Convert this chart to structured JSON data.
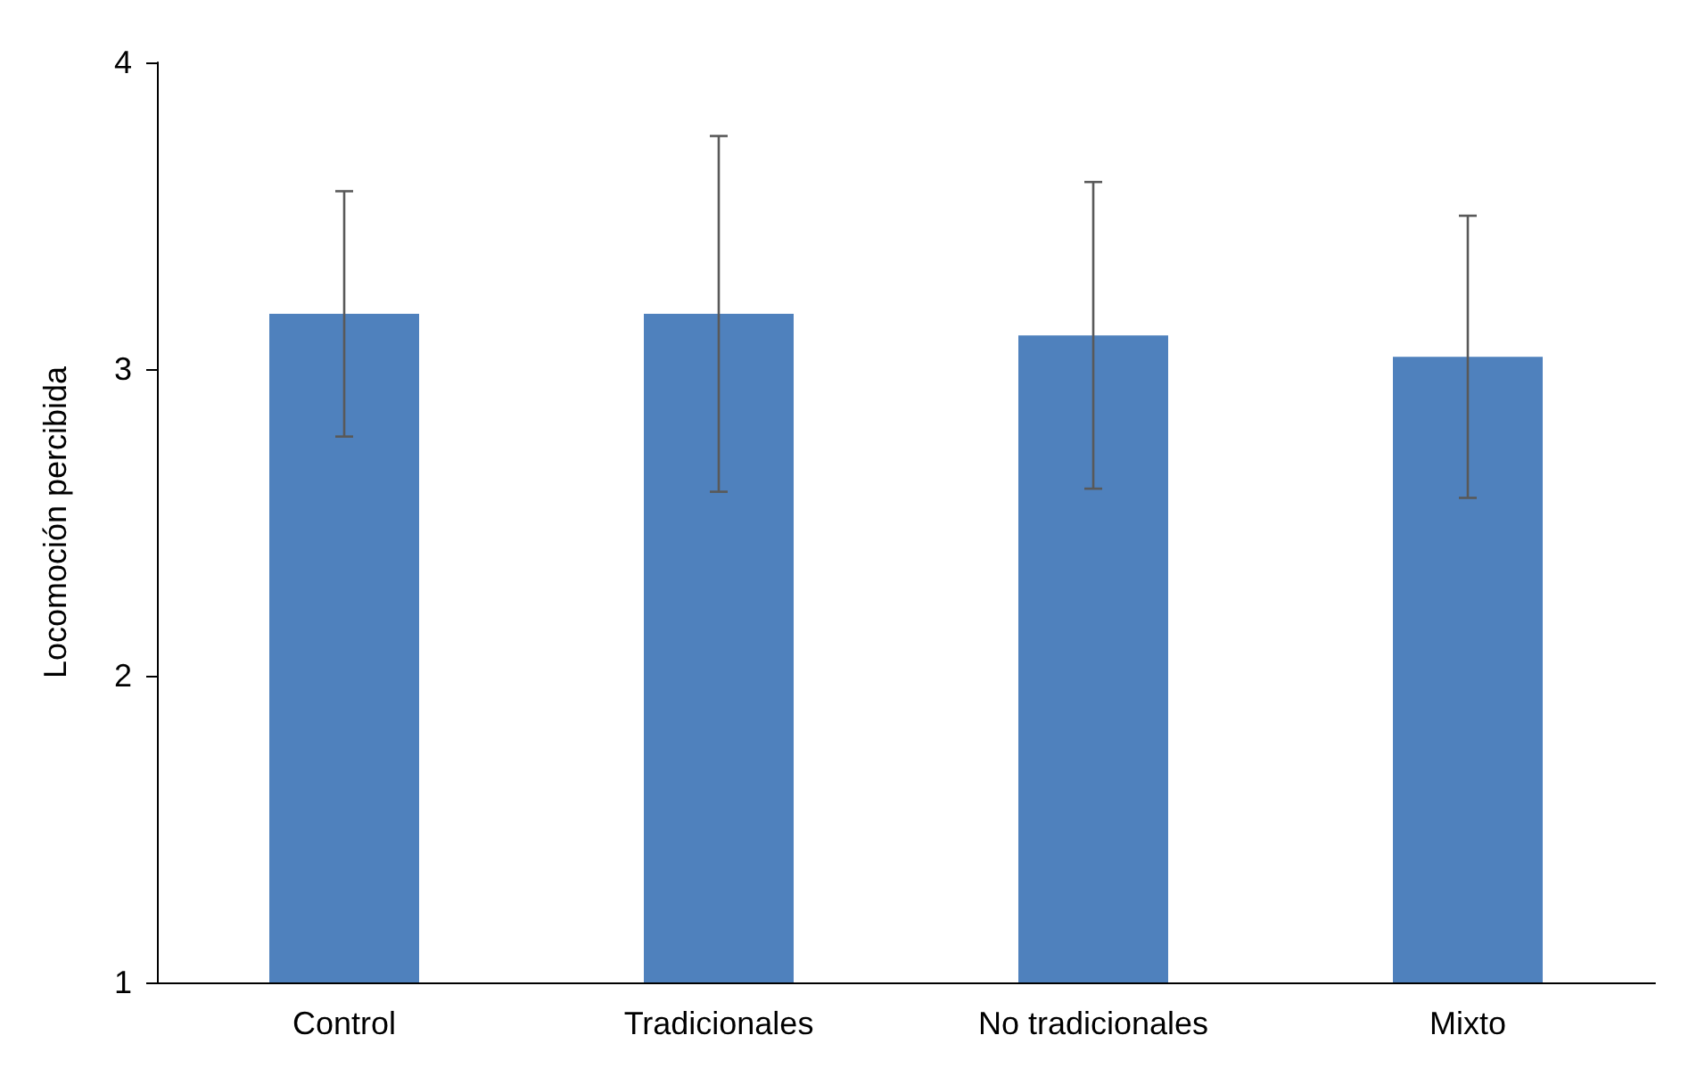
{
  "chart_data": {
    "type": "bar",
    "ylabel": "Locomoción percibida",
    "categories": [
      "Control",
      "Tradicionales",
      "No tradicionales",
      "Mixto"
    ],
    "values": [
      3.18,
      3.18,
      3.11,
      3.04
    ],
    "errors": [
      0.4,
      0.58,
      0.5,
      0.46
    ],
    "color": "#4f81bd",
    "ylim": [
      1,
      4
    ],
    "yticks": [
      1,
      2,
      3,
      4
    ],
    "grid": false
  }
}
